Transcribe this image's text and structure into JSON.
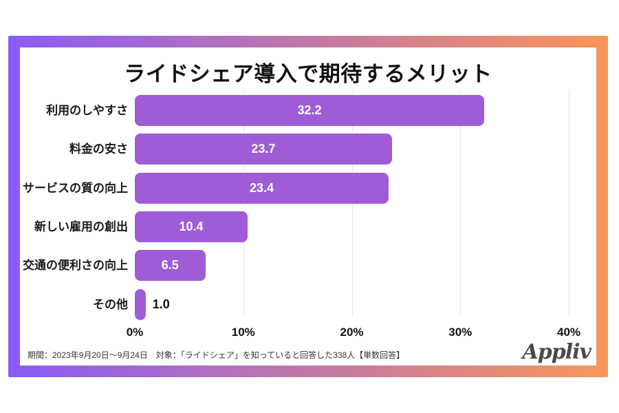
{
  "frame": {
    "gradient_start": "#8A5BF5",
    "gradient_end": "#F8965A"
  },
  "chart_data": {
    "type": "bar",
    "orientation": "horizontal",
    "title": "ライドシェア導入で期待するメリット",
    "categories": [
      "利用のしやすさ",
      "料金の安さ",
      "サービスの質の向上",
      "新しい雇用の創出",
      "交通の便利さの向上",
      "その他"
    ],
    "values": [
      32.2,
      23.7,
      23.4,
      10.4,
      6.5,
      1.0
    ],
    "value_labels": [
      "32.2",
      "23.7",
      "23.4",
      "10.4",
      "6.5",
      "1.0"
    ],
    "xlabel": "",
    "ylabel": "",
    "xlim": [
      0,
      40
    ],
    "x_ticks": [
      "0%",
      "10%",
      "20%",
      "30%",
      "40%"
    ],
    "x_tick_values": [
      0,
      10,
      20,
      30,
      40
    ],
    "grid": true,
    "legend": false,
    "bar_color": "#9F5CD7",
    "value_label_color_inside": "#ffffff",
    "value_label_color_outside": "#111111"
  },
  "footer": {
    "note": "期間：2023年9月20日〜9月24日　対象：「ライドシェア」を知っていると回答した338人【単数回答】"
  },
  "branding": {
    "logo_text": "Appliv"
  }
}
